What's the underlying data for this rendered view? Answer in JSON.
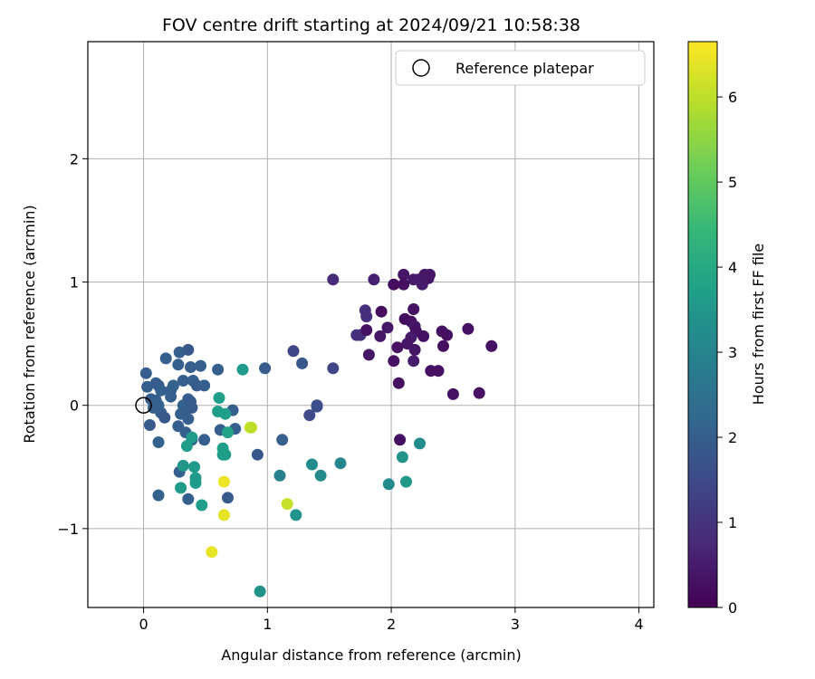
{
  "chart_data": {
    "type": "scatter",
    "title": "FOV centre drift starting at 2024/09/21 10:58:38",
    "xlabel": "Angular distance from reference (arcmin)",
    "ylabel": "Rotation from reference (arcmin)",
    "xlim": [
      -0.45,
      4.12
    ],
    "ylim": [
      -1.64,
      2.95
    ],
    "xticks": [
      0,
      1,
      2,
      3,
      4
    ],
    "yticks": [
      -1,
      0,
      1,
      2
    ],
    "grid": true,
    "legend": {
      "placement": "top-right",
      "entries": [
        "Reference platepar"
      ]
    },
    "reference_point": {
      "x": 0,
      "y": 0,
      "marker": "open circle"
    },
    "colorbar": {
      "label": "Hours from first FF file",
      "colormap": "viridis",
      "range": [
        0,
        6.65
      ],
      "ticks": [
        0,
        1,
        2,
        3,
        4,
        5,
        6
      ]
    },
    "color_scale": [
      "#440154",
      "#482878",
      "#3e4989",
      "#31688e",
      "#26828e",
      "#1f9e89",
      "#35b779",
      "#6ece58",
      "#b5de2b",
      "#fde725"
    ],
    "points": [
      {
        "x": 1.53,
        "y": 1.02,
        "h": 0.8
      },
      {
        "x": 1.86,
        "y": 1.02,
        "h": 0.6
      },
      {
        "x": 2.02,
        "y": 0.98,
        "h": 0.2
      },
      {
        "x": 2.1,
        "y": 1.06,
        "h": 0.4
      },
      {
        "x": 2.1,
        "y": 0.98,
        "h": 0.3
      },
      {
        "x": 2.18,
        "y": 1.02,
        "h": 0.5
      },
      {
        "x": 2.22,
        "y": 1.02,
        "h": 0.5
      },
      {
        "x": 2.25,
        "y": 0.98,
        "h": 0.5
      },
      {
        "x": 2.27,
        "y": 1.06,
        "h": 0.4
      },
      {
        "x": 2.31,
        "y": 1.06,
        "h": 0.4
      },
      {
        "x": 2.3,
        "y": 1.03,
        "h": 0.4
      },
      {
        "x": 1.79,
        "y": 0.77,
        "h": 0.9
      },
      {
        "x": 1.8,
        "y": 0.72,
        "h": 0.9
      },
      {
        "x": 1.92,
        "y": 0.76,
        "h": 0.2
      },
      {
        "x": 2.18,
        "y": 0.78,
        "h": 0.3
      },
      {
        "x": 1.72,
        "y": 0.57,
        "h": 0.9
      },
      {
        "x": 1.75,
        "y": 0.57,
        "h": 0.9
      },
      {
        "x": 1.8,
        "y": 0.61,
        "h": 0.3
      },
      {
        "x": 1.91,
        "y": 0.56,
        "h": 0.4
      },
      {
        "x": 1.97,
        "y": 0.63,
        "h": 0.4
      },
      {
        "x": 2.11,
        "y": 0.7,
        "h": 0.2
      },
      {
        "x": 2.16,
        "y": 0.68,
        "h": 0.3
      },
      {
        "x": 2.19,
        "y": 0.64,
        "h": 0.4
      },
      {
        "x": 2.2,
        "y": 0.6,
        "h": 0.3
      },
      {
        "x": 2.26,
        "y": 0.56,
        "h": 0.3
      },
      {
        "x": 2.16,
        "y": 0.55,
        "h": 0.5
      },
      {
        "x": 2.13,
        "y": 0.5,
        "h": 0.4
      },
      {
        "x": 2.19,
        "y": 0.45,
        "h": 0.4
      },
      {
        "x": 2.05,
        "y": 0.47,
        "h": 0.3
      },
      {
        "x": 2.41,
        "y": 0.6,
        "h": 0.3
      },
      {
        "x": 2.45,
        "y": 0.57,
        "h": 0.3
      },
      {
        "x": 2.42,
        "y": 0.48,
        "h": 0.3
      },
      {
        "x": 2.62,
        "y": 0.62,
        "h": 0.3
      },
      {
        "x": 1.82,
        "y": 0.41,
        "h": 0.4
      },
      {
        "x": 2.02,
        "y": 0.36,
        "h": 0.3
      },
      {
        "x": 2.18,
        "y": 0.36,
        "h": 0.5
      },
      {
        "x": 2.32,
        "y": 0.28,
        "h": 0.3
      },
      {
        "x": 2.38,
        "y": 0.28,
        "h": 0.3
      },
      {
        "x": 2.06,
        "y": 0.18,
        "h": 0.3
      },
      {
        "x": 2.5,
        "y": 0.09,
        "h": 0.3
      },
      {
        "x": 2.71,
        "y": 0.1,
        "h": 0.3
      },
      {
        "x": 2.81,
        "y": 0.48,
        "h": 0.3
      },
      {
        "x": 2.07,
        "y": -0.28,
        "h": 0.3
      },
      {
        "x": 1.53,
        "y": 0.3,
        "h": 1.4
      },
      {
        "x": 1.4,
        "y": 0.0,
        "h": 1.7
      },
      {
        "x": 1.4,
        "y": -0.01,
        "h": 1.6
      },
      {
        "x": 1.34,
        "y": -0.08,
        "h": 1.5
      },
      {
        "x": 1.21,
        "y": 0.44,
        "h": 1.4
      },
      {
        "x": 1.28,
        "y": 0.34,
        "h": 1.8
      },
      {
        "x": 0.98,
        "y": 0.3,
        "h": 1.9
      },
      {
        "x": 1.12,
        "y": -0.28,
        "h": 2.0
      },
      {
        "x": 0.92,
        "y": -0.4,
        "h": 1.8
      },
      {
        "x": 0.02,
        "y": 0.26,
        "h": 2.0
      },
      {
        "x": 0.03,
        "y": 0.15,
        "h": 2.0
      },
      {
        "x": 0.1,
        "y": 0.18,
        "h": 2.0
      },
      {
        "x": 0.12,
        "y": 0.16,
        "h": 1.9
      },
      {
        "x": 0.14,
        "y": 0.12,
        "h": 2.0
      },
      {
        "x": 0.06,
        "y": 0.05,
        "h": 2.0
      },
      {
        "x": 0.1,
        "y": 0.04,
        "h": 2.0
      },
      {
        "x": 0.12,
        "y": 0.0,
        "h": 2.1
      },
      {
        "x": 0.08,
        "y": -0.02,
        "h": 2.0
      },
      {
        "x": 0.05,
        "y": -0.16,
        "h": 1.9
      },
      {
        "x": 0.14,
        "y": -0.06,
        "h": 2.0
      },
      {
        "x": 0.17,
        "y": -0.1,
        "h": 1.8
      },
      {
        "x": 0.12,
        "y": -0.3,
        "h": 2.1
      },
      {
        "x": 0.18,
        "y": 0.38,
        "h": 2.0
      },
      {
        "x": 0.22,
        "y": 0.12,
        "h": 2.0
      },
      {
        "x": 0.24,
        "y": 0.16,
        "h": 2.1
      },
      {
        "x": 0.22,
        "y": 0.07,
        "h": 2.0
      },
      {
        "x": 0.28,
        "y": 0.33,
        "h": 2.0
      },
      {
        "x": 0.29,
        "y": 0.43,
        "h": 2.0
      },
      {
        "x": 0.36,
        "y": 0.45,
        "h": 1.8
      },
      {
        "x": 0.32,
        "y": 0.2,
        "h": 2.0
      },
      {
        "x": 0.32,
        "y": 0.0,
        "h": 2.1
      },
      {
        "x": 0.36,
        "y": 0.05,
        "h": 2.0
      },
      {
        "x": 0.33,
        "y": -0.05,
        "h": 1.9
      },
      {
        "x": 0.3,
        "y": -0.07,
        "h": 2.0
      },
      {
        "x": 0.36,
        "y": -0.11,
        "h": 2.0
      },
      {
        "x": 0.28,
        "y": -0.17,
        "h": 2.0
      },
      {
        "x": 0.34,
        "y": -0.22,
        "h": 2.0
      },
      {
        "x": 0.39,
        "y": -0.28,
        "h": 2.0
      },
      {
        "x": 0.38,
        "y": 0.31,
        "h": 2.0
      },
      {
        "x": 0.4,
        "y": 0.2,
        "h": 2.0
      },
      {
        "x": 0.43,
        "y": 0.16,
        "h": 1.9
      },
      {
        "x": 0.38,
        "y": 0.03,
        "h": 1.9
      },
      {
        "x": 0.39,
        "y": -0.02,
        "h": 1.9
      },
      {
        "x": 0.46,
        "y": 0.32,
        "h": 2.0
      },
      {
        "x": 0.49,
        "y": 0.16,
        "h": 2.0
      },
      {
        "x": 0.6,
        "y": 0.29,
        "h": 2.0
      },
      {
        "x": 0.49,
        "y": -0.28,
        "h": 2.0
      },
      {
        "x": 0.62,
        "y": -0.2,
        "h": 2.0
      },
      {
        "x": 0.72,
        "y": -0.04,
        "h": 2.0
      },
      {
        "x": 0.74,
        "y": -0.19,
        "h": 2.0
      },
      {
        "x": 0.29,
        "y": -0.54,
        "h": 2.0
      },
      {
        "x": 0.36,
        "y": -0.76,
        "h": 2.0
      },
      {
        "x": 0.12,
        "y": -0.73,
        "h": 2.1
      },
      {
        "x": 0.68,
        "y": -0.75,
        "h": 1.9
      },
      {
        "x": 0.8,
        "y": 0.29,
        "h": 3.6
      },
      {
        "x": 0.61,
        "y": 0.06,
        "h": 3.7
      },
      {
        "x": 0.6,
        "y": -0.05,
        "h": 3.7
      },
      {
        "x": 0.66,
        "y": -0.07,
        "h": 3.7
      },
      {
        "x": 0.68,
        "y": -0.22,
        "h": 3.8
      },
      {
        "x": 0.64,
        "y": -0.35,
        "h": 3.7
      },
      {
        "x": 0.64,
        "y": -0.4,
        "h": 3.7
      },
      {
        "x": 0.66,
        "y": -0.4,
        "h": 3.7
      },
      {
        "x": 0.39,
        "y": -0.26,
        "h": 3.6
      },
      {
        "x": 0.35,
        "y": -0.33,
        "h": 3.7
      },
      {
        "x": 0.32,
        "y": -0.49,
        "h": 3.5
      },
      {
        "x": 0.41,
        "y": -0.5,
        "h": 3.6
      },
      {
        "x": 0.42,
        "y": -0.59,
        "h": 3.6
      },
      {
        "x": 0.42,
        "y": -0.63,
        "h": 3.6
      },
      {
        "x": 0.3,
        "y": -0.67,
        "h": 3.6
      },
      {
        "x": 0.47,
        "y": -0.81,
        "h": 3.7
      },
      {
        "x": 1.1,
        "y": -0.57,
        "h": 2.9
      },
      {
        "x": 1.36,
        "y": -0.48,
        "h": 3.2
      },
      {
        "x": 1.43,
        "y": -0.57,
        "h": 3.2
      },
      {
        "x": 1.59,
        "y": -0.47,
        "h": 3.1
      },
      {
        "x": 1.23,
        "y": -0.89,
        "h": 3.4
      },
      {
        "x": 0.94,
        "y": -1.51,
        "h": 3.4
      },
      {
        "x": 1.98,
        "y": -0.64,
        "h": 3.2
      },
      {
        "x": 2.09,
        "y": -0.42,
        "h": 3.4
      },
      {
        "x": 2.12,
        "y": -0.62,
        "h": 3.5
      },
      {
        "x": 2.23,
        "y": -0.31,
        "h": 3.2
      },
      {
        "x": 0.86,
        "y": -0.18,
        "h": 6.2
      },
      {
        "x": 0.87,
        "y": -0.18,
        "h": 6.0
      },
      {
        "x": 0.65,
        "y": -0.62,
        "h": 6.5
      },
      {
        "x": 0.65,
        "y": -0.89,
        "h": 6.4
      },
      {
        "x": 1.16,
        "y": -0.8,
        "h": 6.1
      },
      {
        "x": 0.55,
        "y": -1.19,
        "h": 6.4
      }
    ]
  }
}
